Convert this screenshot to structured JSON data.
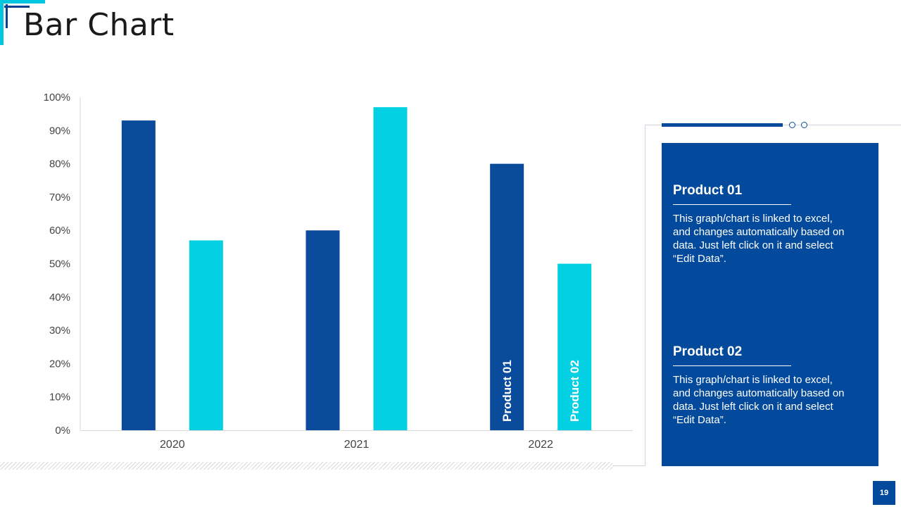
{
  "slide": {
    "title": "Bar Chart",
    "page_number": "19"
  },
  "colors": {
    "product01": "#0a4b9c",
    "product02": "#03d0e3",
    "panel": "#044a9c",
    "accent": "#00c6e0"
  },
  "chart_data": {
    "type": "bar",
    "title": "",
    "xlabel": "",
    "ylabel": "",
    "categories": [
      "2020",
      "2021",
      "2022"
    ],
    "series": [
      {
        "name": "Product 01",
        "values": [
          93,
          60,
          80
        ]
      },
      {
        "name": "Product 02",
        "values": [
          57,
          97,
          50
        ]
      }
    ],
    "ylim": [
      0,
      100
    ],
    "y_ticks": [
      "0%",
      "10%",
      "20%",
      "30%",
      "40%",
      "50%",
      "60%",
      "70%",
      "80%",
      "90%",
      "100%"
    ],
    "bar_labels": [
      "Product 01",
      "Product 02"
    ],
    "grid": false
  },
  "legend_panel": {
    "items": [
      {
        "title": "Product 01",
        "text": "This graph/chart is linked to excel, and changes automatically based on data. Just left click on it and select “Edit Data”."
      },
      {
        "title": "Product 02",
        "text": "This graph/chart is linked to excel, and changes automatically based on data. Just left click on it and select “Edit Data”."
      }
    ]
  }
}
